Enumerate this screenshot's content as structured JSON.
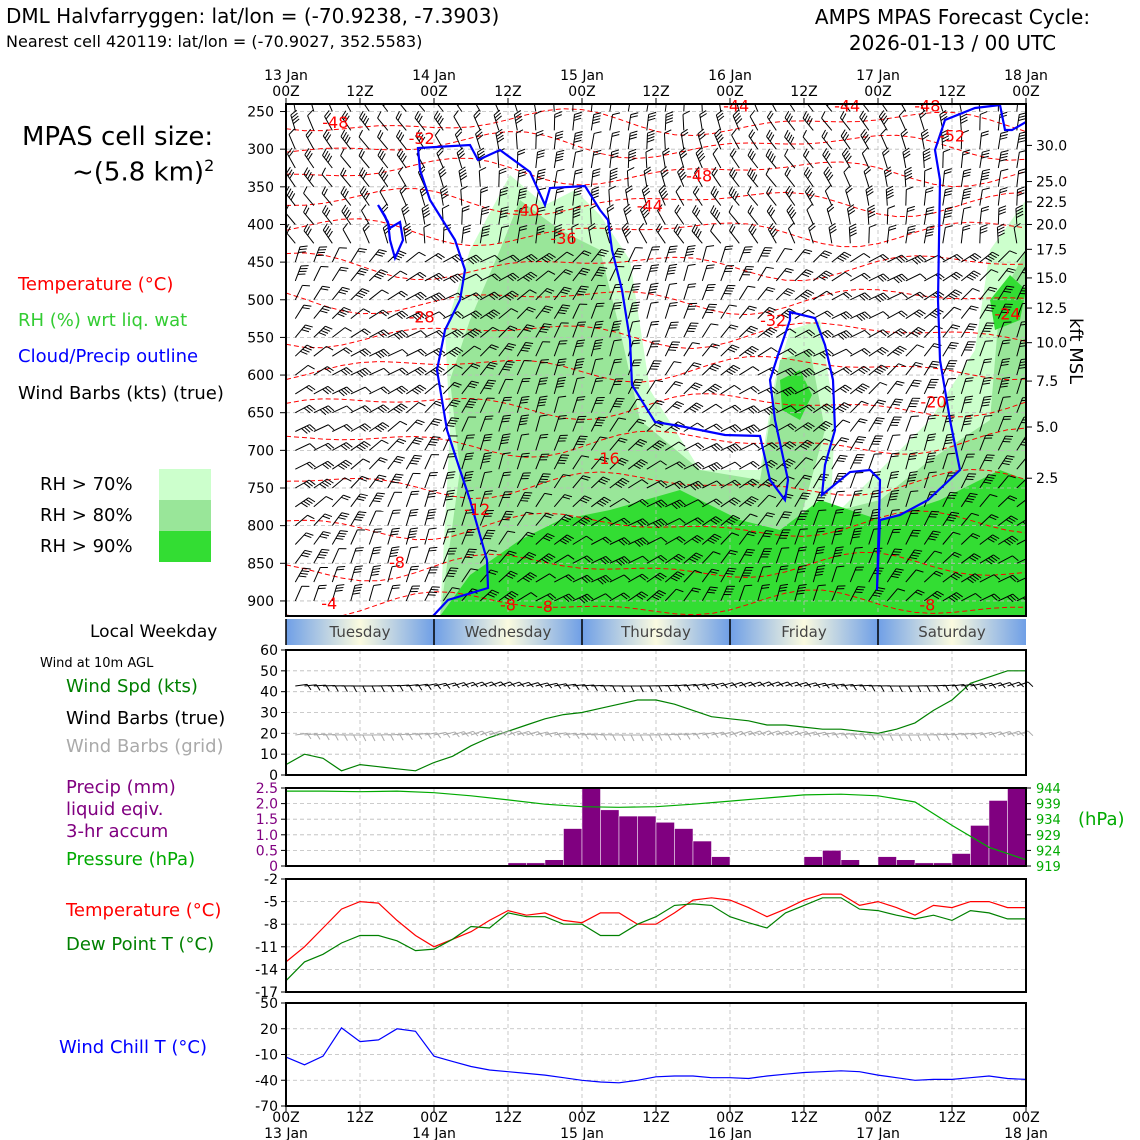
{
  "header": {
    "title_left": "DML Halvfarryggen: lat/lon = (-70.9238, -7.3903)",
    "subtitle_left": "Nearest cell 420119: lat/lon = (-70.9027, 352.5583)",
    "title_right_1": "AMPS MPAS Forecast Cycle:",
    "title_right_2": "2026-01-13 / 00 UTC"
  },
  "cell_size": {
    "line1": "MPAS cell size:",
    "line2": "~(5.8 km)",
    "sup": "2"
  },
  "legend": {
    "temperature": {
      "label": "Temperature (°C)",
      "color": "#ff0000"
    },
    "rh": {
      "label": "RH (%) wrt liq. wat",
      "color": "#33cc33"
    },
    "cloud": {
      "label": "Cloud/Precip outline",
      "color": "#0000ff"
    },
    "wind": {
      "label": "Wind Barbs (kts) (true)",
      "color": "#000000"
    },
    "rh70": {
      "label": "RH > 70%",
      "color": "#ccffcc"
    },
    "rh80": {
      "label": "RH > 80%",
      "color": "#99e699"
    },
    "rh90": {
      "label": "RH > 90%",
      "color": "#33dd33"
    }
  },
  "time_axis": {
    "top_labels": [
      {
        "t": 0,
        "l1": "13 Jan",
        "l2": "00Z"
      },
      {
        "t": 12,
        "l1": "",
        "l2": "12Z"
      },
      {
        "t": 24,
        "l1": "14 Jan",
        "l2": "00Z"
      },
      {
        "t": 36,
        "l1": "",
        "l2": "12Z"
      },
      {
        "t": 48,
        "l1": "15 Jan",
        "l2": "00Z"
      },
      {
        "t": 60,
        "l1": "",
        "l2": "12Z"
      },
      {
        "t": 72,
        "l1": "16 Jan",
        "l2": "00Z"
      },
      {
        "t": 84,
        "l1": "",
        "l2": "12Z"
      },
      {
        "t": 96,
        "l1": "17 Jan",
        "l2": "00Z"
      },
      {
        "t": 108,
        "l1": "",
        "l2": "12Z"
      },
      {
        "t": 120,
        "l1": "18 Jan",
        "l2": "00Z"
      }
    ],
    "bottom_labels": [
      {
        "t": 0,
        "l1": "00Z",
        "l2": "13 Jan"
      },
      {
        "t": 12,
        "l1": "12Z",
        "l2": ""
      },
      {
        "t": 24,
        "l1": "00Z",
        "l2": "14 Jan"
      },
      {
        "t": 36,
        "l1": "12Z",
        "l2": ""
      },
      {
        "t": 48,
        "l1": "00Z",
        "l2": "15 Jan"
      },
      {
        "t": 60,
        "l1": "12Z",
        "l2": ""
      },
      {
        "t": 72,
        "l1": "00Z",
        "l2": "16 Jan"
      },
      {
        "t": 84,
        "l1": "12Z",
        "l2": ""
      },
      {
        "t": 96,
        "l1": "00Z",
        "l2": "17 Jan"
      },
      {
        "t": 108,
        "l1": "12Z",
        "l2": ""
      },
      {
        "t": 120,
        "l1": "00Z",
        "l2": "18 Jan"
      }
    ]
  },
  "weekday": {
    "label": "Local Weekday",
    "days": [
      {
        "name": "Tuesday",
        "t0": 0,
        "t1": 24
      },
      {
        "name": "Wednesday",
        "t0": 24,
        "t1": 48
      },
      {
        "name": "Thursday",
        "t0": 48,
        "t1": 72
      },
      {
        "name": "Friday",
        "t0": 72,
        "t1": 96
      },
      {
        "name": "Saturday",
        "t0": 96,
        "t1": 120
      }
    ]
  },
  "chart_data": [
    {
      "type": "contour",
      "name": "cross-section",
      "y_axis": {
        "label": "",
        "ticks": [
          250,
          300,
          350,
          400,
          450,
          500,
          550,
          600,
          650,
          700,
          750,
          800,
          850,
          900
        ],
        "range": [
          240,
          920
        ]
      },
      "y2_axis": {
        "label": "kft MSL",
        "ticks": [
          {
            "v": "30.0",
            "p": 295
          },
          {
            "v": "25.0",
            "p": 343
          },
          {
            "v": "22.5",
            "p": 370
          },
          {
            "v": "20.0",
            "p": 400
          },
          {
            "v": "17.5",
            "p": 433
          },
          {
            "v": "15.0",
            "p": 471
          },
          {
            "v": "12.5",
            "p": 511
          },
          {
            "v": "10.0",
            "p": 557
          },
          {
            "v": "7.5",
            "p": 608
          },
          {
            "v": "5.0",
            "p": 669
          },
          {
            "v": "2.5",
            "p": 737
          }
        ]
      },
      "temperature_labels": [
        {
          "v": "-48",
          "t": 8,
          "p": 264
        },
        {
          "v": "-52",
          "t": 22,
          "p": 285
        },
        {
          "v": "-48",
          "t": 67,
          "p": 335
        },
        {
          "v": "-44",
          "t": 59,
          "p": 375
        },
        {
          "v": "-40",
          "t": 39,
          "p": 380
        },
        {
          "v": "-36",
          "t": 45,
          "p": 418
        },
        {
          "v": "-32",
          "t": 79,
          "p": 527
        },
        {
          "v": "-28",
          "t": 22,
          "p": 522
        },
        {
          "v": "-24",
          "t": 117,
          "p": 518
        },
        {
          "v": "-20",
          "t": 105,
          "p": 635
        },
        {
          "v": "-16",
          "t": 52,
          "p": 710
        },
        {
          "v": "-12",
          "t": 31,
          "p": 778
        },
        {
          "v": "-8",
          "t": 18,
          "p": 848
        },
        {
          "v": "-8",
          "t": 36,
          "p": 905
        },
        {
          "v": "-8",
          "t": 42,
          "p": 907
        },
        {
          "v": "-8",
          "t": 104,
          "p": 905
        },
        {
          "v": "-4",
          "t": 7,
          "p": 903
        },
        {
          "v": "-44",
          "t": 73,
          "p": 242
        },
        {
          "v": "-44",
          "t": 91,
          "p": 242
        },
        {
          "v": "-48",
          "t": 104,
          "p": 242
        },
        {
          "v": "-52",
          "t": 108,
          "p": 282
        }
      ]
    },
    {
      "type": "line",
      "name": "wind-speed",
      "label": "Wind Spd (kts)",
      "ylim": [
        0,
        60
      ],
      "yticks": [
        0,
        10,
        20,
        30,
        40,
        50,
        60
      ],
      "x": [
        0,
        3,
        6,
        9,
        12,
        15,
        18,
        21,
        24,
        27,
        30,
        33,
        36,
        39,
        42,
        45,
        48,
        51,
        54,
        57,
        60,
        63,
        66,
        69,
        72,
        75,
        78,
        81,
        84,
        87,
        90,
        93,
        96,
        99,
        102,
        105,
        108,
        111,
        114,
        117,
        120
      ],
      "values": [
        5,
        10,
        8,
        2,
        5,
        4,
        3,
        2,
        6,
        9,
        14,
        18,
        21,
        24,
        27,
        29,
        30,
        32,
        34,
        36,
        36,
        34,
        31,
        28,
        27,
        26,
        24,
        24,
        23,
        22,
        22,
        21,
        20,
        22,
        25,
        31,
        36,
        44,
        47,
        50,
        50
      ],
      "side_labels": [
        "Wind Barbs (true)",
        "Wind Barbs (grid)"
      ],
      "header": "Wind at 10m AGL"
    },
    {
      "type": "bar",
      "name": "precip",
      "label": "Precip (mm) liquid eqiv. 3-hr accum",
      "ylim": [
        0,
        2.5
      ],
      "yticks": [
        "0",
        "0.5",
        "1.0",
        "1.5",
        "2.0",
        "2.5"
      ],
      "x": [
        36,
        39,
        42,
        45,
        48,
        51,
        54,
        57,
        60,
        63,
        66,
        69,
        84,
        87,
        90,
        96,
        99,
        102,
        105,
        108,
        111,
        114,
        117
      ],
      "values": [
        0.1,
        0.1,
        0.2,
        1.2,
        2.5,
        1.8,
        1.6,
        1.6,
        1.4,
        1.2,
        0.8,
        0.3,
        0.3,
        0.5,
        0.2,
        0.3,
        0.2,
        0.1,
        0.1,
        0.4,
        1.3,
        2.1,
        2.5
      ]
    },
    {
      "type": "line",
      "name": "pressure",
      "label": "Pressure (hPa)",
      "unit": "(hPa)",
      "ylim": [
        919,
        944
      ],
      "yticks": [
        "944",
        "939",
        "934",
        "929",
        "924",
        "919"
      ],
      "x": [
        0,
        6,
        12,
        18,
        24,
        30,
        36,
        42,
        48,
        54,
        60,
        66,
        72,
        78,
        84,
        90,
        96,
        102,
        108,
        114,
        120
      ],
      "values": [
        943,
        943,
        942.8,
        943,
        942.5,
        941.5,
        940.2,
        938.8,
        938,
        937.8,
        938,
        938.8,
        939.8,
        940.8,
        941.8,
        942,
        941.5,
        939.5,
        932,
        925,
        921
      ]
    },
    {
      "type": "line",
      "name": "temperature-dewpoint",
      "ylim": [
        -17,
        -2
      ],
      "yticks": [
        "-2",
        "-5",
        "-8",
        "-11",
        "-14",
        "-17"
      ],
      "series": [
        {
          "name": "Temperature (°C)",
          "color": "#ff0000",
          "x": [
            0,
            3,
            6,
            9,
            12,
            15,
            18,
            21,
            24,
            27,
            30,
            33,
            36,
            39,
            42,
            45,
            48,
            51,
            54,
            57,
            60,
            63,
            66,
            69,
            72,
            75,
            78,
            81,
            84,
            87,
            90,
            93,
            96,
            99,
            102,
            105,
            108,
            111,
            114,
            117,
            120
          ],
          "values": [
            -13,
            -11,
            -8.5,
            -6,
            -5,
            -5.2,
            -7.5,
            -9.5,
            -11,
            -10,
            -9,
            -7.5,
            -6.2,
            -6.8,
            -6.5,
            -7.5,
            -7.8,
            -6.5,
            -6.5,
            -8,
            -8,
            -6.5,
            -4.8,
            -4.5,
            -4.8,
            -5.8,
            -7,
            -6,
            -4.8,
            -4,
            -4,
            -5.5,
            -5,
            -5.8,
            -6.8,
            -5.5,
            -5.8,
            -5,
            -5,
            -5.8,
            -5.8
          ]
        },
        {
          "name": "Dew Point T (°C)",
          "color": "#008000",
          "x": [
            0,
            3,
            6,
            9,
            12,
            15,
            18,
            21,
            24,
            27,
            30,
            33,
            36,
            39,
            42,
            45,
            48,
            51,
            54,
            57,
            60,
            63,
            66,
            69,
            72,
            75,
            78,
            81,
            84,
            87,
            90,
            93,
            96,
            99,
            102,
            105,
            108,
            111,
            114,
            117,
            120
          ],
          "values": [
            -15.5,
            -13,
            -12,
            -10.5,
            -9.5,
            -9.5,
            -10.2,
            -11.5,
            -11.3,
            -10,
            -8.3,
            -8.5,
            -6.5,
            -7,
            -7,
            -8,
            -8,
            -9.5,
            -9.5,
            -8,
            -7,
            -5.5,
            -5.3,
            -5.5,
            -7,
            -7.8,
            -8.5,
            -6.5,
            -5.5,
            -4.5,
            -4.5,
            -6,
            -6.2,
            -6.8,
            -7.3,
            -6.8,
            -7.5,
            -6.2,
            -6.5,
            -7.3,
            -7.3
          ]
        }
      ]
    },
    {
      "type": "line",
      "name": "wind-chill",
      "label": "Wind Chill T (°C)",
      "ylim": [
        -70,
        50
      ],
      "yticks": [
        "50",
        "20",
        "-10",
        "-40",
        "-70"
      ],
      "x": [
        0,
        3,
        6,
        9,
        12,
        15,
        18,
        21,
        24,
        27,
        30,
        33,
        36,
        39,
        42,
        45,
        48,
        51,
        54,
        57,
        60,
        63,
        66,
        69,
        72,
        75,
        78,
        81,
        84,
        87,
        90,
        93,
        96,
        99,
        102,
        105,
        108,
        111,
        114,
        117,
        120
      ],
      "values": [
        -13,
        -22,
        -12,
        21,
        5,
        7,
        20,
        17,
        -12,
        -18,
        -24,
        -28,
        -30,
        -32,
        -34,
        -37,
        -40,
        -42,
        -43,
        -40,
        -36,
        -35,
        -35,
        -37,
        -37,
        -38,
        -35,
        -33,
        -31,
        -30,
        -29,
        -30,
        -34,
        -37,
        -40,
        -39,
        -39,
        -37,
        -35,
        -38,
        -39
      ]
    }
  ],
  "side_panel": {
    "wind_spd": "Wind Spd (kts)",
    "barbs_true": "Wind Barbs (true)",
    "barbs_grid": "Wind Barbs (grid)",
    "precip_1": "Precip (mm)",
    "precip_2": "liquid eqiv.",
    "precip_3": "3-hr accum",
    "pressure": "Pressure (hPa)",
    "temperature": "Temperature (°C)",
    "dewpoint": "Dew Point T (°C)",
    "windchill": "Wind Chill T (°C)"
  }
}
